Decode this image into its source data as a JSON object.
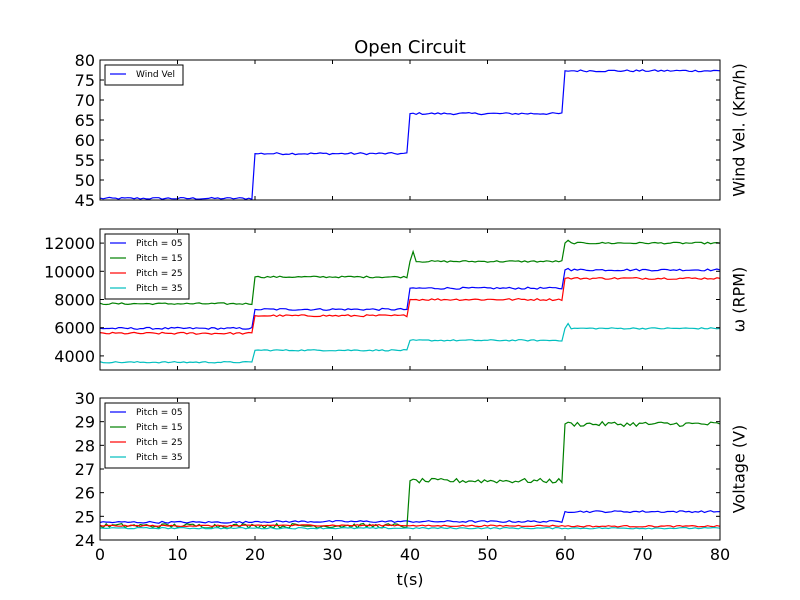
{
  "chart_data": {
    "title": "Open Circuit",
    "xlabel": "t(s)",
    "x_ticks": [
      "0",
      "10",
      "20",
      "30",
      "40",
      "50",
      "60",
      "70",
      "80"
    ],
    "xlim": [
      0,
      80
    ],
    "panels": [
      {
        "type": "line",
        "ylabel": "Wind Vel. (Km/h)",
        "ylim": [
          45,
          80
        ],
        "y_ticks": [
          45,
          50,
          55,
          60,
          65,
          70,
          75,
          80
        ],
        "y_tick_labels": [
          "45",
          "50",
          "55",
          "60",
          "65",
          "70",
          "75",
          "80"
        ],
        "legend": "top-left",
        "series": [
          {
            "name": "Wind Vel",
            "color": "#0000ff",
            "noise": 0.25,
            "steps": [
              [
                0,
                20,
                45.4
              ],
              [
                20,
                40,
                56.6
              ],
              [
                40,
                60,
                66.6
              ],
              [
                60,
                80,
                77.3
              ]
            ],
            "spikes": []
          }
        ]
      },
      {
        "type": "line",
        "ylabel": "ω (RPM)",
        "ylim": [
          3000,
          13000
        ],
        "y_ticks": [
          4000,
          6000,
          8000,
          10000,
          12000
        ],
        "y_tick_labels": [
          "4000",
          "6000",
          "8000",
          "10000",
          "12000"
        ],
        "legend": "top-left",
        "series": [
          {
            "name": "Pitch = 05",
            "color": "#0000ff",
            "noise": 70,
            "steps": [
              [
                0,
                20,
                5950
              ],
              [
                20,
                40,
                7300
              ],
              [
                40,
                60,
                8800
              ],
              [
                60,
                80,
                10100
              ]
            ],
            "spikes": [
              [
                60.2,
                10200
              ]
            ]
          },
          {
            "name": "Pitch = 15",
            "color": "#008000",
            "noise": 60,
            "steps": [
              [
                0,
                20,
                7700
              ],
              [
                20,
                40,
                9600
              ],
              [
                40,
                60,
                10700
              ],
              [
                60,
                80,
                12000
              ]
            ],
            "spikes": [
              [
                40.2,
                11400
              ],
              [
                60.2,
                12200
              ]
            ]
          },
          {
            "name": "Pitch = 25",
            "color": "#ff0000",
            "noise": 70,
            "steps": [
              [
                0,
                20,
                5600
              ],
              [
                20,
                40,
                6850
              ],
              [
                40,
                60,
                8000
              ],
              [
                60,
                80,
                9500
              ]
            ],
            "spikes": []
          },
          {
            "name": "Pitch = 35",
            "color": "#00bfbf",
            "noise": 50,
            "steps": [
              [
                0,
                20,
                3550
              ],
              [
                20,
                40,
                4400
              ],
              [
                40,
                60,
                5100
              ],
              [
                60,
                80,
                5950
              ]
            ],
            "spikes": [
              [
                60.2,
                6300
              ]
            ]
          }
        ]
      },
      {
        "type": "line",
        "ylabel": "Voltage (V)",
        "ylim": [
          24,
          30
        ],
        "y_ticks": [
          24,
          25,
          26,
          27,
          28,
          29,
          30
        ],
        "y_tick_labels": [
          "24",
          "25",
          "26",
          "27",
          "28",
          "29",
          "30"
        ],
        "legend": "top-left",
        "series": [
          {
            "name": "Pitch = 05",
            "color": "#0000ff",
            "noise": 0.04,
            "steps": [
              [
                0,
                20,
                24.75
              ],
              [
                20,
                40,
                24.78
              ],
              [
                40,
                60,
                24.78
              ],
              [
                60,
                80,
                25.2
              ]
            ],
            "spikes": []
          },
          {
            "name": "Pitch = 15",
            "color": "#008000",
            "noise": 0.1,
            "steps": [
              [
                0,
                20,
                24.6
              ],
              [
                20,
                40,
                24.6
              ],
              [
                40,
                60,
                26.5
              ],
              [
                60,
                80,
                28.9
              ]
            ],
            "spikes": []
          },
          {
            "name": "Pitch = 25",
            "color": "#ff0000",
            "noise": 0.03,
            "steps": [
              [
                0,
                20,
                24.6
              ],
              [
                20,
                40,
                24.62
              ],
              [
                40,
                60,
                24.6
              ],
              [
                60,
                80,
                24.58
              ]
            ],
            "spikes": []
          },
          {
            "name": "Pitch = 35",
            "color": "#00bfbf",
            "noise": 0.03,
            "steps": [
              [
                0,
                20,
                24.5
              ],
              [
                20,
                40,
                24.5
              ],
              [
                40,
                60,
                24.5
              ],
              [
                60,
                80,
                24.5
              ]
            ],
            "spikes": []
          }
        ]
      }
    ]
  }
}
